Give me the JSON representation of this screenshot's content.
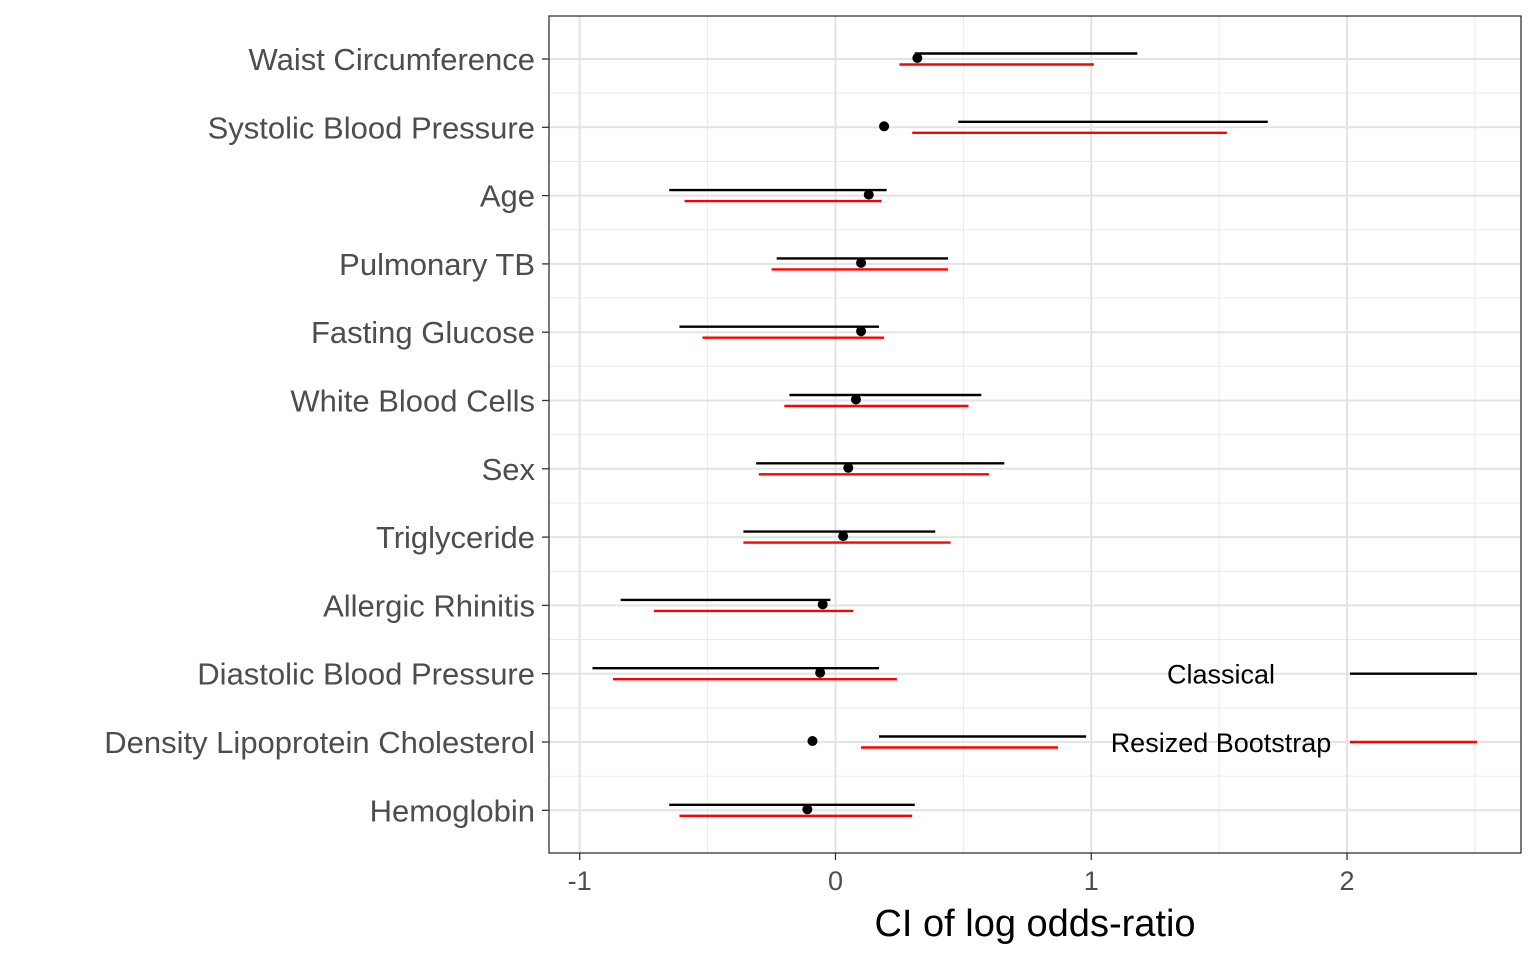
{
  "chart_data": {
    "type": "interval",
    "title": "",
    "xlabel": "CI of log odds-ratio",
    "ylabel": "",
    "xlim": [
      -1.12,
      2.68
    ],
    "x_ticks": [
      -1,
      0,
      1,
      2
    ],
    "x_tick_labels": [
      "-1",
      "0",
      "1",
      "2"
    ],
    "grid": true,
    "categories": [
      "Waist Circumference",
      "Systolic Blood Pressure",
      "Age",
      "Pulmonary TB",
      "Fasting Glucose",
      "White Blood Cells",
      "Sex",
      "Triglyceride",
      "Allergic Rhinitis",
      "Diastolic Blood Pressure",
      "Density Lipoprotein Cholesterol",
      "Hemoglobin"
    ],
    "estimates": [
      0.32,
      0.19,
      0.13,
      0.1,
      0.1,
      0.08,
      0.05,
      0.03,
      -0.05,
      -0.06,
      -0.09,
      -0.11
    ],
    "series": [
      {
        "name": "Classical",
        "color": "#000000",
        "lower": [
          0.31,
          0.48,
          -0.65,
          -0.23,
          -0.61,
          -0.18,
          -0.31,
          -0.36,
          -0.84,
          -0.95,
          0.17,
          -0.65
        ],
        "upper": [
          1.18,
          1.69,
          0.2,
          0.44,
          0.17,
          0.57,
          0.66,
          0.39,
          -0.02,
          0.17,
          0.98,
          0.31
        ]
      },
      {
        "name": "Resized Bootstrap",
        "color": "#ff0000",
        "lower": [
          0.25,
          0.3,
          -0.59,
          -0.25,
          -0.52,
          -0.2,
          -0.3,
          -0.36,
          -0.71,
          -0.87,
          0.1,
          -0.61
        ],
        "upper": [
          1.01,
          1.53,
          0.18,
          0.44,
          0.19,
          0.52,
          0.6,
          0.45,
          0.07,
          0.24,
          0.87,
          0.3
        ]
      }
    ],
    "legend": {
      "position": "bottom-right-inside",
      "entries": [
        "Classical",
        "Resized Bootstrap"
      ]
    }
  }
}
